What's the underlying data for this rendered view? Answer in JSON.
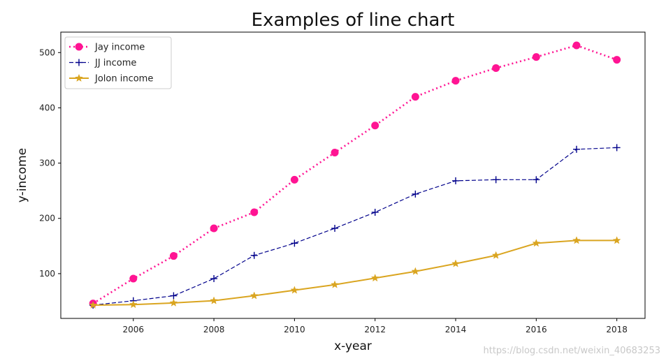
{
  "chart_data": {
    "type": "line",
    "title": "Examples of line chart",
    "xlabel": "x-year",
    "ylabel": "y-income",
    "x": [
      2005,
      2006,
      2007,
      2008,
      2009,
      2010,
      2011,
      2012,
      2013,
      2014,
      2015,
      2016,
      2017,
      2018
    ],
    "xlim": [
      2004.2,
      2018.7
    ],
    "ylim": [
      19,
      537
    ],
    "xticks": [
      2006,
      2008,
      2010,
      2012,
      2014,
      2016,
      2018
    ],
    "yticks": [
      100,
      200,
      300,
      400,
      500
    ],
    "grid": false,
    "legend_position": "upper-left",
    "series": [
      {
        "name": "Jay income",
        "color": "#ff1493",
        "line_style": "dotted",
        "marker": "circle",
        "values": [
          46,
          91,
          132,
          182,
          211,
          270,
          319,
          368,
          420,
          449,
          472,
          492,
          513,
          487
        ]
      },
      {
        "name": "JJ income",
        "color": "#00008b",
        "line_style": "dashed",
        "marker": "plus",
        "values": [
          43,
          51,
          60,
          91,
          133,
          155,
          182,
          211,
          244,
          268,
          270,
          270,
          325,
          328
        ]
      },
      {
        "name": "Jolon income",
        "color": "#daa520",
        "line_style": "solid",
        "marker": "star",
        "values": [
          43,
          44,
          47,
          51,
          60,
          70,
          80,
          92,
          104,
          118,
          133,
          155,
          160,
          160
        ]
      }
    ]
  },
  "watermark": "https://blog.csdn.net/weixin_40683253"
}
